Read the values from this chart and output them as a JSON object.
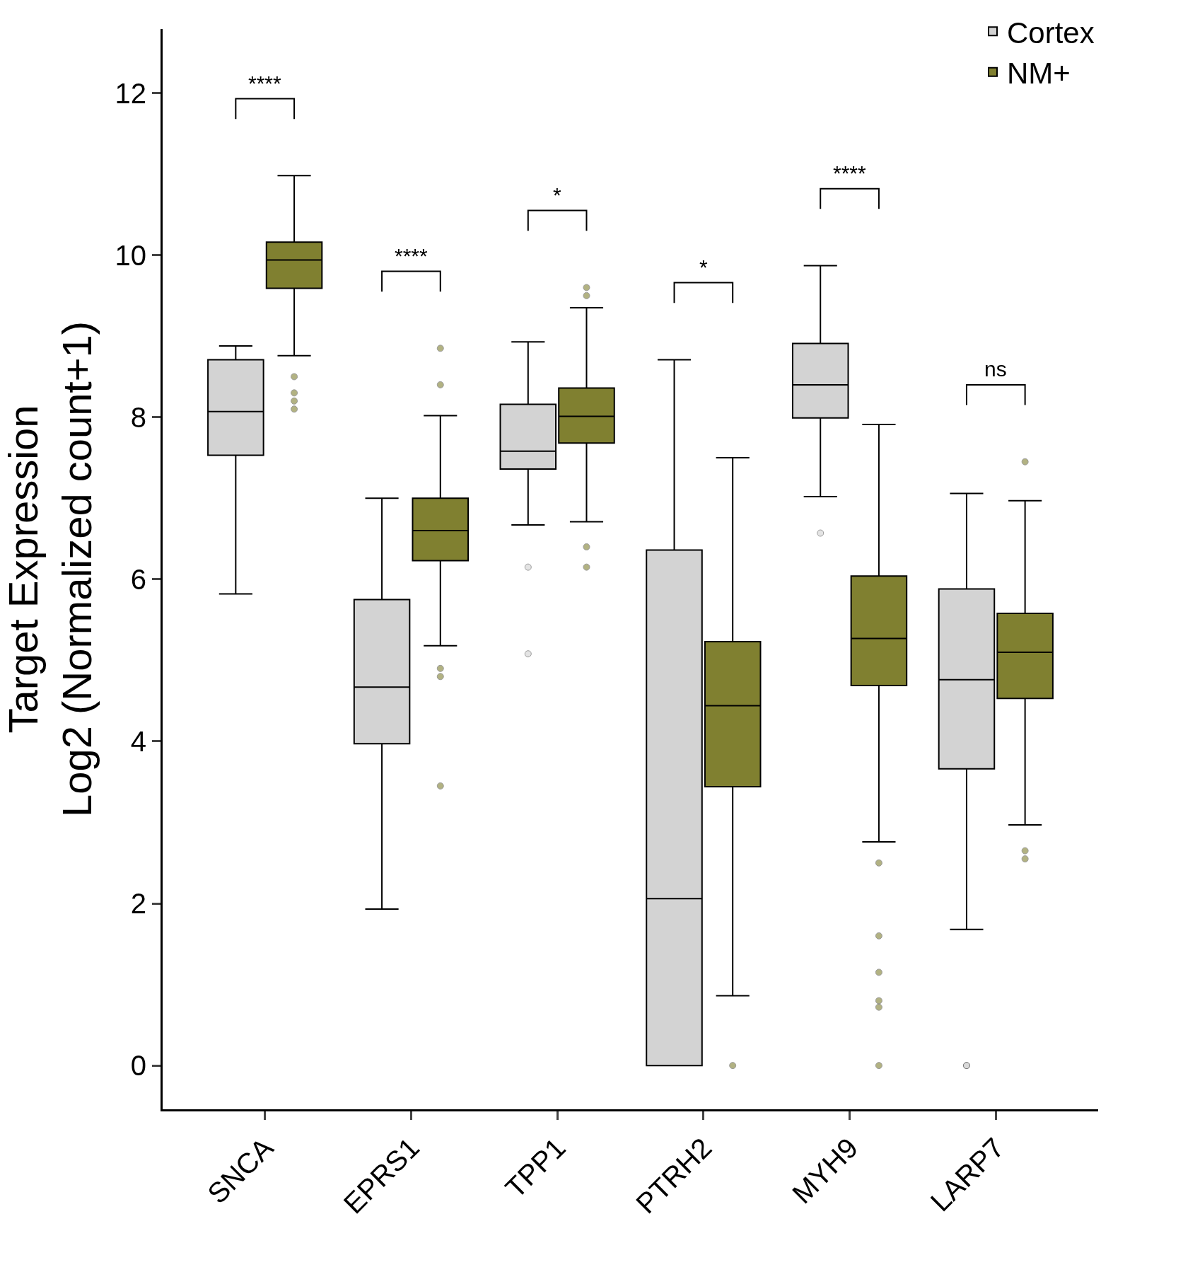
{
  "chart_data": {
    "type": "box",
    "ylabel": "Target Expression\nLog2 (Normalized count+1)",
    "categories": [
      "SNCA",
      "EPRS1",
      "TPP1",
      "PTRH2",
      "MYH9",
      "LARP7"
    ],
    "series": [
      {
        "name": "Cortex",
        "color": "#d3d3d3",
        "boxes": [
          {
            "low": 5.82,
            "q1": 7.53,
            "median": 8.07,
            "q3": 8.71,
            "high": 8.88
          },
          {
            "low": 1.93,
            "q1": 3.97,
            "median": 4.67,
            "q3": 5.75,
            "high": 7.0
          },
          {
            "low": 6.67,
            "q1": 7.36,
            "median": 7.58,
            "q3": 8.16,
            "high": 8.93,
            "outliers": [
              6.15,
              5.08
            ]
          },
          {
            "low": 0,
            "q1": 0,
            "median": 2.06,
            "q3": 6.36,
            "high": 8.71
          },
          {
            "low": 7.02,
            "q1": 7.99,
            "median": 8.4,
            "q3": 8.91,
            "high": 9.87,
            "outliers": [
              6.57
            ]
          },
          {
            "low": 1.68,
            "q1": 3.66,
            "median": 4.76,
            "q3": 5.88,
            "high": 7.06,
            "outliers": [
              0,
              0
            ]
          }
        ]
      },
      {
        "name": "NM+",
        "color": "#808030",
        "boxes": [
          {
            "low": 8.76,
            "q1": 9.59,
            "median": 9.94,
            "q3": 10.16,
            "high": 10.98,
            "outliers": [
              8.1,
              8.2,
              8.3,
              8.5
            ]
          },
          {
            "low": 5.18,
            "q1": 6.23,
            "median": 6.6,
            "q3": 7.0,
            "high": 8.02,
            "outliers": [
              8.4,
              8.85,
              4.8,
              4.9,
              3.45
            ]
          },
          {
            "low": 6.71,
            "q1": 7.68,
            "median": 8.01,
            "q3": 8.36,
            "high": 9.35,
            "outliers": [
              6.15,
              6.4,
              9.5,
              9.6
            ]
          },
          {
            "low": 0.86,
            "q1": 3.44,
            "median": 4.44,
            "q3": 5.23,
            "high": 7.5,
            "outliers": [
              0
            ]
          },
          {
            "low": 2.76,
            "q1": 4.69,
            "median": 5.27,
            "q3": 6.04,
            "high": 7.91,
            "outliers": [
              2.5,
              1.6,
              1.15,
              0.8,
              0.72,
              0
            ]
          },
          {
            "low": 2.97,
            "q1": 4.53,
            "median": 5.1,
            "q3": 5.58,
            "high": 6.97,
            "outliers": [
              7.45,
              2.65,
              2.55
            ]
          }
        ]
      }
    ],
    "annotations": [
      "****",
      "****",
      "*",
      "*",
      "****",
      "ns"
    ],
    "ylim": [
      -0.54,
      12.79
    ],
    "yticks": [
      0,
      2,
      4,
      6,
      8,
      10,
      12
    ],
    "legend": "top right"
  }
}
